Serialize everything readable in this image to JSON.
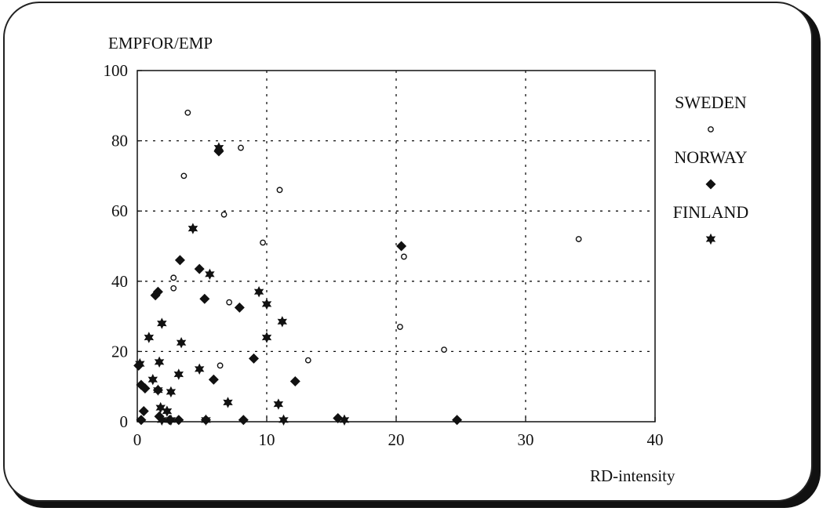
{
  "chart_data": {
    "type": "scatter",
    "title": "",
    "ylabel": "EMPFOR/EMP",
    "xlabel": "RD-intensity",
    "xlim": [
      0,
      40
    ],
    "ylim": [
      0,
      100
    ],
    "xticks": [
      0,
      10,
      20,
      30,
      40
    ],
    "yticks": [
      0,
      20,
      40,
      60,
      80,
      100
    ],
    "grid": "dotted",
    "legend_position": "right",
    "series": [
      {
        "name": "SWEDEN",
        "marker": "open-circle",
        "color": "#111111",
        "points": [
          {
            "x": 3.9,
            "y": 88
          },
          {
            "x": 8.0,
            "y": 78
          },
          {
            "x": 3.6,
            "y": 70
          },
          {
            "x": 11.0,
            "y": 66
          },
          {
            "x": 6.7,
            "y": 59
          },
          {
            "x": 9.7,
            "y": 51
          },
          {
            "x": 34.1,
            "y": 52
          },
          {
            "x": 20.6,
            "y": 47
          },
          {
            "x": 2.8,
            "y": 41
          },
          {
            "x": 2.8,
            "y": 38
          },
          {
            "x": 7.1,
            "y": 34
          },
          {
            "x": 20.3,
            "y": 27
          },
          {
            "x": 23.7,
            "y": 20.5
          },
          {
            "x": 13.2,
            "y": 17.5
          },
          {
            "x": 6.4,
            "y": 16
          }
        ]
      },
      {
        "name": "NORWAY",
        "marker": "filled-diamond",
        "color": "#111111",
        "points": [
          {
            "x": 6.3,
            "y": 77
          },
          {
            "x": 20.4,
            "y": 50
          },
          {
            "x": 3.3,
            "y": 46
          },
          {
            "x": 4.8,
            "y": 43.5
          },
          {
            "x": 1.6,
            "y": 37
          },
          {
            "x": 1.4,
            "y": 36
          },
          {
            "x": 5.2,
            "y": 35
          },
          {
            "x": 7.9,
            "y": 32.5
          },
          {
            "x": 9.0,
            "y": 18
          },
          {
            "x": 0.1,
            "y": 16
          },
          {
            "x": 5.9,
            "y": 12
          },
          {
            "x": 12.2,
            "y": 11.5
          },
          {
            "x": 0.3,
            "y": 10.5
          },
          {
            "x": 0.6,
            "y": 9.5
          },
          {
            "x": 1.6,
            "y": 9
          },
          {
            "x": 0.5,
            "y": 3
          },
          {
            "x": 1.7,
            "y": 1.5
          },
          {
            "x": 15.5,
            "y": 1
          },
          {
            "x": 0.3,
            "y": 0.5
          },
          {
            "x": 2.5,
            "y": 0.5
          },
          {
            "x": 3.2,
            "y": 0.5
          },
          {
            "x": 5.3,
            "y": 0.5
          },
          {
            "x": 8.2,
            "y": 0.5
          },
          {
            "x": 24.7,
            "y": 0.5
          }
        ]
      },
      {
        "name": "FINLAND",
        "marker": "filled-star",
        "color": "#111111",
        "points": [
          {
            "x": 6.3,
            "y": 78
          },
          {
            "x": 4.3,
            "y": 55
          },
          {
            "x": 5.6,
            "y": 42
          },
          {
            "x": 9.4,
            "y": 37
          },
          {
            "x": 10.0,
            "y": 33.5
          },
          {
            "x": 11.2,
            "y": 28.5
          },
          {
            "x": 1.9,
            "y": 28
          },
          {
            "x": 0.9,
            "y": 24
          },
          {
            "x": 10.0,
            "y": 24
          },
          {
            "x": 3.4,
            "y": 22.5
          },
          {
            "x": 1.7,
            "y": 17
          },
          {
            "x": 0.2,
            "y": 16.5
          },
          {
            "x": 4.8,
            "y": 15
          },
          {
            "x": 3.2,
            "y": 13.5
          },
          {
            "x": 1.2,
            "y": 12
          },
          {
            "x": 1.6,
            "y": 9
          },
          {
            "x": 2.6,
            "y": 8.5
          },
          {
            "x": 7.0,
            "y": 5.5
          },
          {
            "x": 10.9,
            "y": 5
          },
          {
            "x": 1.8,
            "y": 4
          },
          {
            "x": 2.3,
            "y": 3
          },
          {
            "x": 1.9,
            "y": 0.5
          },
          {
            "x": 2.6,
            "y": 0.5
          },
          {
            "x": 5.3,
            "y": 0.5
          },
          {
            "x": 11.3,
            "y": 0.5
          },
          {
            "x": 16.0,
            "y": 0.5
          }
        ]
      }
    ]
  }
}
